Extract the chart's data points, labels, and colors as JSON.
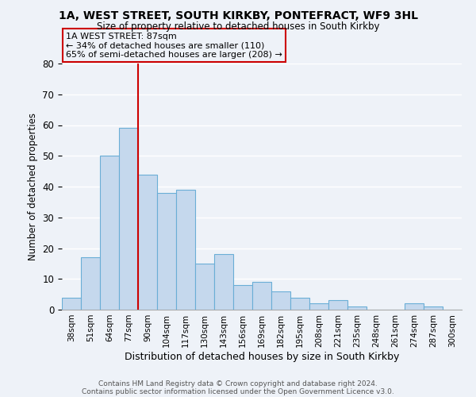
{
  "title": "1A, WEST STREET, SOUTH KIRKBY, PONTEFRACT, WF9 3HL",
  "subtitle": "Size of property relative to detached houses in South Kirkby",
  "xlabel": "Distribution of detached houses by size in South Kirkby",
  "ylabel": "Number of detached properties",
  "bin_labels": [
    "38sqm",
    "51sqm",
    "64sqm",
    "77sqm",
    "90sqm",
    "104sqm",
    "117sqm",
    "130sqm",
    "143sqm",
    "156sqm",
    "169sqm",
    "182sqm",
    "195sqm",
    "208sqm",
    "221sqm",
    "235sqm",
    "248sqm",
    "261sqm",
    "274sqm",
    "287sqm",
    "300sqm"
  ],
  "bar_values": [
    4,
    17,
    50,
    59,
    44,
    38,
    39,
    15,
    18,
    8,
    9,
    6,
    4,
    2,
    3,
    1,
    0,
    0,
    2,
    1,
    0
  ],
  "bar_color": "#c5d8ed",
  "bar_edge_color": "#6aaed6",
  "ylim": [
    0,
    80
  ],
  "yticks": [
    0,
    10,
    20,
    30,
    40,
    50,
    60,
    70,
    80
  ],
  "property_line_x": 3.5,
  "property_line_color": "#cc0000",
  "annotation_title": "1A WEST STREET: 87sqm",
  "annotation_line1": "← 34% of detached houses are smaller (110)",
  "annotation_line2": "65% of semi-detached houses are larger (208) →",
  "annotation_box_color": "#cc0000",
  "footer_line1": "Contains HM Land Registry data © Crown copyright and database right 2024.",
  "footer_line2": "Contains public sector information licensed under the Open Government Licence v3.0.",
  "background_color": "#eef2f8",
  "grid_color": "#ffffff"
}
